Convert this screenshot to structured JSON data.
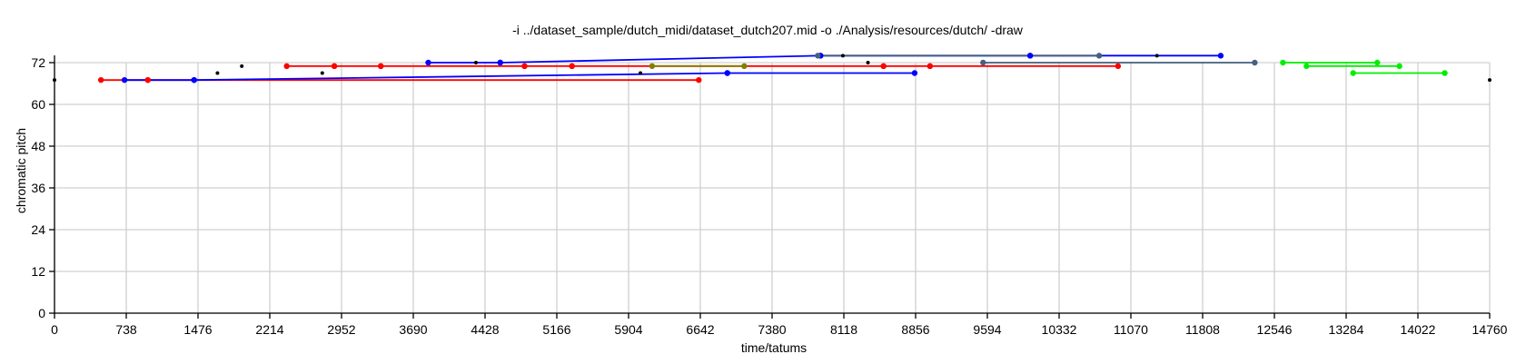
{
  "chart_data": {
    "type": "scatter",
    "title": "-i ../dataset_sample/dutch_midi/dataset_dutch207.mid -o ./Analysis/resources/dutch/ -draw",
    "xlabel": "time/tatums",
    "ylabel": "chromatic pitch",
    "xlim": [
      0,
      14760
    ],
    "ylim": [
      0,
      72
    ],
    "xticks": [
      0,
      738,
      1476,
      2214,
      2952,
      3690,
      4428,
      5166,
      5904,
      6642,
      7380,
      8118,
      8856,
      9594,
      10332,
      11070,
      11808,
      12546,
      13284,
      14022,
      14760
    ],
    "yticks": [
      0,
      12,
      24,
      36,
      48,
      60,
      72
    ],
    "grid": true,
    "points": [
      {
        "x": 0,
        "y": 67
      },
      {
        "x": 1676,
        "y": 69
      },
      {
        "x": 1926,
        "y": 71
      },
      {
        "x": 2754,
        "y": 69
      },
      {
        "x": 4334,
        "y": 72
      },
      {
        "x": 6026,
        "y": 69
      },
      {
        "x": 8108,
        "y": 74
      },
      {
        "x": 8366,
        "y": 72
      },
      {
        "x": 11338,
        "y": 74
      },
      {
        "x": 14760,
        "y": 67
      }
    ],
    "series": [
      {
        "color": "#ff0000",
        "segments": [
          [
            [
              478,
              67
            ],
            [
              960,
              67
            ]
          ],
          [
            [
              960,
              67
            ],
            [
              6626,
              67
            ]
          ],
          [
            [
              2388,
              71
            ],
            [
              2878,
              71
            ]
          ],
          [
            [
              2878,
              71
            ],
            [
              3356,
              71
            ]
          ],
          [
            [
              3356,
              71
            ],
            [
              4834,
              71
            ]
          ],
          [
            [
              4834,
              71
            ],
            [
              5322,
              71
            ]
          ],
          [
            [
              5322,
              71
            ],
            [
              8526,
              71
            ]
          ],
          [
            [
              8526,
              71
            ],
            [
              9004,
              71
            ]
          ],
          [
            [
              9004,
              71
            ],
            [
              10938,
              71
            ]
          ]
        ]
      },
      {
        "color": "#0000ff",
        "segments": [
          [
            [
              720,
              67
            ],
            [
              1436,
              67
            ]
          ],
          [
            [
              1436,
              67
            ],
            [
              6920,
              69
            ]
          ],
          [
            [
              6920,
              69
            ],
            [
              8846,
              69
            ]
          ],
          [
            [
              3844,
              72
            ],
            [
              4584,
              72
            ]
          ],
          [
            [
              4584,
              72
            ],
            [
              7878,
              74
            ]
          ],
          [
            [
              7878,
              74
            ],
            [
              10034,
              74
            ]
          ],
          [
            [
              10034,
              74
            ],
            [
              11994,
              74
            ]
          ]
        ]
      },
      {
        "color": "#44617f",
        "segments": [
          [
            [
              7850,
              74
            ],
            [
              10744,
              74
            ]
          ],
          [
            [
              9550,
              72
            ],
            [
              12344,
              72
            ]
          ]
        ]
      },
      {
        "color": "#00ee00",
        "segments": [
          [
            [
              12634,
              72
            ],
            [
              13604,
              72
            ]
          ],
          [
            [
              12876,
              71
            ],
            [
              13832,
              71
            ]
          ],
          [
            [
              13356,
              69
            ],
            [
              14298,
              69
            ]
          ]
        ]
      },
      {
        "color": "#808000",
        "segments": [
          [
            [
              6146,
              71
            ],
            [
              7094,
              71
            ]
          ]
        ]
      }
    ]
  }
}
